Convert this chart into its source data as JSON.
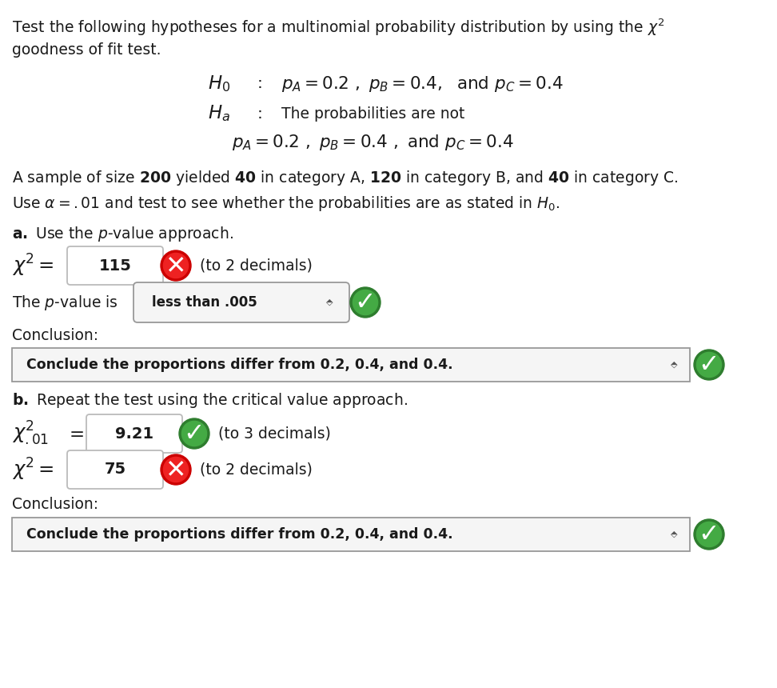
{
  "bg_color": "#ffffff",
  "text_color": "#1a1a1a",
  "box_border_color": "#bbbbbb",
  "dropdown_fill": "#f5f5f5",
  "dropdown_border": "#999999",
  "green_outer": "#2e7d2e",
  "green_inner": "#44aa44",
  "red_outer": "#cc0000",
  "red_inner": "#ee2222",
  "chi2_value": "115",
  "pvalue_value": "less than .005",
  "conclusion_value": "Conclude the proportions differ from 0.2, 0.4, and 0.4.",
  "chi2_01_value": "9.21",
  "chi2_b_value": "75",
  "conclusion_b_value": "Conclude the proportions differ from 0.2, 0.4, and 0.4."
}
